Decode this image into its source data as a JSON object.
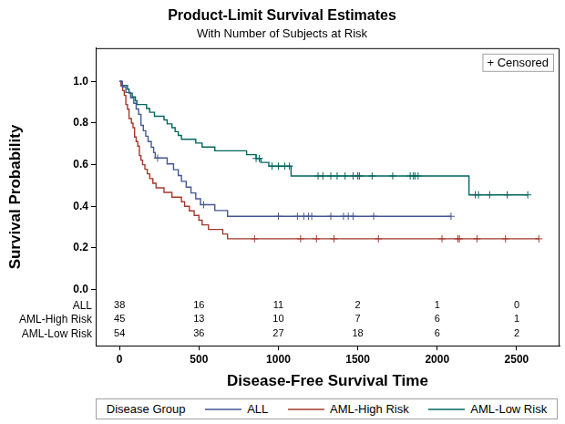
{
  "chart_data": {
    "type": "line",
    "line_style": "step",
    "title": "Product-Limit Survival Estimates",
    "subtitle": "With Number of Subjects at Risk",
    "xlabel": "Disease-Free Survival Time",
    "ylabel": "Survival Probability",
    "xlim": [
      -150,
      2770
    ],
    "ylim": [
      -0.27,
      1.16
    ],
    "xticks": [
      0,
      500,
      1000,
      1500,
      2000,
      2500
    ],
    "yticks": [
      {
        "value": 0,
        "label": "0.0"
      },
      {
        "value": 0.2,
        "label": "0.2"
      },
      {
        "value": 0.4,
        "label": "0.4"
      },
      {
        "value": 0.6,
        "label": "0.6"
      },
      {
        "value": 0.8,
        "label": "0.8"
      },
      {
        "value": 1,
        "label": "1.0"
      }
    ],
    "grid": false,
    "legend": "bottom",
    "legend_title": "Disease Group",
    "censored_label": "+ Censored",
    "at_risk_x": [
      0,
      500,
      1000,
      1500,
      2000,
      2500
    ],
    "series": [
      {
        "name": "ALL",
        "color": "#445694",
        "x": [
          0,
          18,
          40,
          70,
          90,
          105,
          120,
          135,
          150,
          165,
          180,
          200,
          215,
          225,
          300,
          340,
          370,
          390,
          420,
          450,
          480,
          510,
          600,
          680,
          2087
        ],
        "values": [
          1.0,
          0.974,
          0.947,
          0.921,
          0.895,
          0.868,
          0.842,
          0.789,
          0.763,
          0.737,
          0.711,
          0.684,
          0.658,
          0.632,
          0.604,
          0.576,
          0.548,
          0.52,
          0.492,
          0.464,
          0.436,
          0.408,
          0.38,
          0.352,
          0.352
        ],
        "censored": [
          240,
          530,
          1000,
          1120,
          1160,
          1190,
          1210,
          1330,
          1410,
          1440,
          1470,
          1600,
          2087
        ],
        "at_risk": [
          38,
          16,
          11,
          2,
          1,
          0
        ]
      },
      {
        "name": "AML-High Risk",
        "color": "#A23A2E",
        "x": [
          0,
          10,
          20,
          30,
          40,
          50,
          60,
          75,
          85,
          95,
          105,
          115,
          125,
          135,
          145,
          160,
          175,
          190,
          210,
          230,
          280,
          330,
          390,
          410,
          440,
          470,
          500,
          520,
          560,
          650,
          680,
          2640
        ],
        "values": [
          1.0,
          0.978,
          0.956,
          0.933,
          0.889,
          0.867,
          0.822,
          0.8,
          0.778,
          0.733,
          0.711,
          0.689,
          0.644,
          0.622,
          0.6,
          0.578,
          0.556,
          0.533,
          0.511,
          0.489,
          0.467,
          0.444,
          0.422,
          0.4,
          0.378,
          0.356,
          0.333,
          0.311,
          0.289,
          0.267,
          0.244,
          0.244
        ],
        "censored": [
          850,
          1140,
          1240,
          1350,
          1630,
          2030,
          2130,
          2140,
          2250,
          2430,
          2640
        ],
        "at_risk": [
          45,
          13,
          10,
          7,
          6,
          1
        ]
      },
      {
        "name": "AML-Low Risk",
        "color": "#01665E",
        "x": [
          0,
          10,
          50,
          60,
          80,
          100,
          110,
          170,
          190,
          220,
          280,
          300,
          330,
          350,
          370,
          390,
          480,
          520,
          600,
          800,
          860,
          890,
          940,
          1080,
          2200,
          2570
        ],
        "values": [
          1.0,
          0.981,
          0.963,
          0.944,
          0.926,
          0.907,
          0.889,
          0.87,
          0.852,
          0.833,
          0.815,
          0.796,
          0.778,
          0.759,
          0.741,
          0.722,
          0.704,
          0.685,
          0.667,
          0.648,
          0.63,
          0.611,
          0.593,
          0.546,
          0.455,
          0.455
        ],
        "censored": [
          860,
          880,
          960,
          1000,
          1040,
          1070,
          1250,
          1280,
          1330,
          1370,
          1420,
          1470,
          1500,
          1510,
          1590,
          1720,
          1830,
          1850,
          1860,
          1880,
          2240,
          2260,
          2330,
          2440,
          2570
        ],
        "at_risk": [
          54,
          36,
          27,
          18,
          6,
          2
        ]
      }
    ]
  }
}
